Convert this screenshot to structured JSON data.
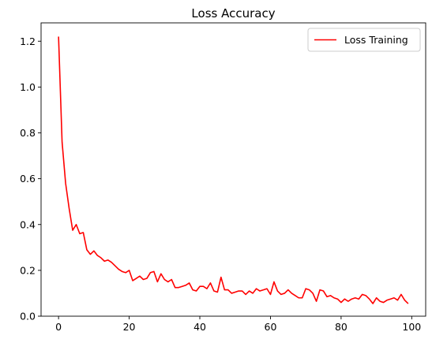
{
  "chart_data": {
    "type": "line",
    "title": "Loss Accuracy",
    "xlabel": "",
    "ylabel": "",
    "xlim": [
      -4.95,
      103.95
    ],
    "ylim": [
      0,
      1.28
    ],
    "xticks": [
      0,
      20,
      40,
      60,
      80,
      100
    ],
    "yticks": [
      0.0,
      0.2,
      0.4,
      0.6,
      0.8,
      1.0,
      1.2
    ],
    "xtick_labels": [
      "0",
      "20",
      "40",
      "60",
      "80",
      "100"
    ],
    "ytick_labels": [
      "0.0",
      "0.2",
      "0.4",
      "0.6",
      "0.8",
      "1.0",
      "1.2"
    ],
    "grid": false,
    "legend_position": "top-right",
    "series": [
      {
        "name": "Loss Training",
        "color": "#ff0000",
        "x": [
          0,
          1,
          2,
          3,
          4,
          5,
          6,
          7,
          8,
          9,
          10,
          11,
          12,
          13,
          14,
          15,
          16,
          17,
          18,
          19,
          20,
          21,
          22,
          23,
          24,
          25,
          26,
          27,
          28,
          29,
          30,
          31,
          32,
          33,
          34,
          35,
          36,
          37,
          38,
          39,
          40,
          41,
          42,
          43,
          44,
          45,
          46,
          47,
          48,
          49,
          50,
          51,
          52,
          53,
          54,
          55,
          56,
          57,
          58,
          59,
          60,
          61,
          62,
          63,
          64,
          65,
          66,
          67,
          68,
          69,
          70,
          71,
          72,
          73,
          74,
          75,
          76,
          77,
          78,
          79,
          80,
          81,
          82,
          83,
          84,
          85,
          86,
          87,
          88,
          89,
          90,
          91,
          92,
          93,
          94,
          95,
          96,
          97,
          98,
          99
        ],
        "values": [
          1.22,
          0.76,
          0.58,
          0.47,
          0.375,
          0.4,
          0.36,
          0.365,
          0.29,
          0.27,
          0.285,
          0.265,
          0.255,
          0.24,
          0.245,
          0.235,
          0.22,
          0.205,
          0.195,
          0.19,
          0.2,
          0.155,
          0.165,
          0.175,
          0.16,
          0.165,
          0.19,
          0.195,
          0.15,
          0.185,
          0.16,
          0.15,
          0.16,
          0.125,
          0.125,
          0.13,
          0.135,
          0.145,
          0.115,
          0.11,
          0.13,
          0.13,
          0.12,
          0.145,
          0.11,
          0.105,
          0.17,
          0.115,
          0.115,
          0.1,
          0.105,
          0.11,
          0.11,
          0.095,
          0.11,
          0.1,
          0.12,
          0.11,
          0.115,
          0.12,
          0.095,
          0.15,
          0.11,
          0.095,
          0.1,
          0.115,
          0.1,
          0.09,
          0.08,
          0.08,
          0.12,
          0.115,
          0.1,
          0.065,
          0.115,
          0.11,
          0.085,
          0.09,
          0.08,
          0.075,
          0.06,
          0.075,
          0.065,
          0.075,
          0.08,
          0.075,
          0.095,
          0.09,
          0.075,
          0.055,
          0.08,
          0.065,
          0.06,
          0.07,
          0.075,
          0.08,
          0.07,
          0.095,
          0.07,
          0.055
        ]
      }
    ]
  }
}
